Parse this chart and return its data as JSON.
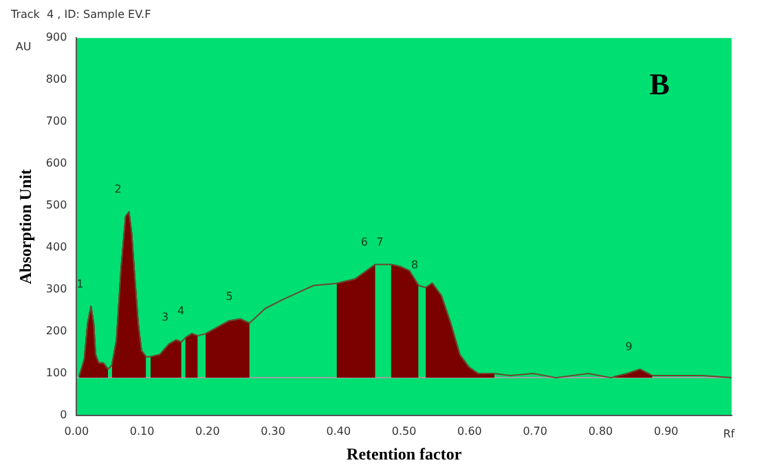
{
  "chart_data": {
    "type": "line",
    "title": "Track  4 , ID: Sample EV.F",
    "xlabel": "Retention factor",
    "ylabel": "Absorption Unit",
    "xlim": [
      0,
      1
    ],
    "ylim": [
      0,
      900
    ],
    "xticks": [
      {
        "value": 0,
        "label": "0.00"
      },
      {
        "value": 0.1,
        "label": "0.10"
      },
      {
        "value": 0.2,
        "label": "0.20"
      },
      {
        "value": 0.3,
        "label": "0.30"
      },
      {
        "value": 0.4,
        "label": "0.40"
      },
      {
        "value": 0.5,
        "label": "0.50"
      },
      {
        "value": 0.6,
        "label": "0.60"
      },
      {
        "value": 0.7,
        "label": "0.70"
      },
      {
        "value": 0.8,
        "label": "0.80"
      },
      {
        "value": 0.9,
        "label": "0.90"
      }
    ],
    "yticks": [
      0,
      100,
      200,
      300,
      400,
      500,
      600,
      700,
      800,
      900
    ],
    "grid": false,
    "legend": false,
    "marker": "none",
    "line_style": "solid",
    "ref_lines": [
      {
        "axis": "y",
        "value": 90,
        "color": "#a0a0a0"
      }
    ],
    "series": [
      {
        "type": "line",
        "color": "#6b4a2e",
        "x": [
          0.004,
          0.012,
          0.017,
          0.022,
          0.026,
          0.029,
          0.034,
          0.041,
          0.048,
          0.054,
          0.061,
          0.068,
          0.075,
          0.08,
          0.084,
          0.089,
          0.094,
          0.099,
          0.106,
          0.113,
          0.127,
          0.141,
          0.152,
          0.16,
          0.166,
          0.176,
          0.185,
          0.197,
          0.215,
          0.232,
          0.25,
          0.264,
          0.288,
          0.313,
          0.334,
          0.362,
          0.397,
          0.425,
          0.456,
          0.47,
          0.48,
          0.494,
          0.508,
          0.522,
          0.533,
          0.543,
          0.557,
          0.571,
          0.585,
          0.599,
          0.613,
          0.638,
          0.662,
          0.697,
          0.732,
          0.781,
          0.816,
          0.841,
          0.86,
          0.879,
          0.907,
          0.956,
          1.0
        ],
        "values": [
          93,
          135,
          220,
          260,
          220,
          145,
          125,
          125,
          110,
          120,
          180,
          350,
          475,
          485,
          435,
          325,
          220,
          155,
          140,
          140,
          145,
          170,
          180,
          175,
          185,
          195,
          190,
          195,
          210,
          225,
          230,
          220,
          255,
          275,
          290,
          310,
          315,
          325,
          360,
          360,
          360,
          355,
          345,
          310,
          305,
          315,
          285,
          220,
          145,
          115,
          100,
          100,
          95,
          100,
          90,
          100,
          90,
          100,
          110,
          95,
          95,
          95,
          90
        ]
      },
      {
        "type": "area",
        "color": "#7b0000",
        "x": [
          0.004,
          0.012,
          0.017,
          0.022,
          0.026,
          0.029,
          0.034,
          0.041,
          0.048
        ],
        "values": [
          93,
          135,
          220,
          260,
          220,
          145,
          125,
          125,
          110
        ]
      },
      {
        "type": "area",
        "color": "#7b0000",
        "x": [
          0.054,
          0.061,
          0.068,
          0.075,
          0.08,
          0.084,
          0.089,
          0.094,
          0.099,
          0.106
        ],
        "values": [
          120,
          180,
          350,
          475,
          485,
          435,
          325,
          220,
          155,
          140
        ]
      },
      {
        "type": "area",
        "color": "#7b0000",
        "x": [
          0.113,
          0.127,
          0.141,
          0.152,
          0.16
        ],
        "values": [
          140,
          145,
          170,
          180,
          175
        ]
      },
      {
        "type": "area",
        "color": "#7b0000",
        "x": [
          0.166,
          0.176,
          0.185
        ],
        "values": [
          185,
          195,
          190
        ]
      },
      {
        "type": "area",
        "color": "#7b0000",
        "x": [
          0.197,
          0.215,
          0.232,
          0.25,
          0.264
        ],
        "values": [
          195,
          210,
          225,
          230,
          220
        ]
      },
      {
        "type": "area",
        "color": "#7b0000",
        "x": [
          0.397,
          0.425,
          0.456
        ],
        "values": [
          315,
          325,
          360
        ]
      },
      {
        "type": "area",
        "color": "#7b0000",
        "x": [
          0.48,
          0.494,
          0.508,
          0.522
        ],
        "values": [
          360,
          355,
          345,
          310
        ]
      },
      {
        "type": "area",
        "color": "#7b0000",
        "x": [
          0.533,
          0.543,
          0.557,
          0.571,
          0.585,
          0.599,
          0.613,
          0.638
        ],
        "values": [
          305,
          315,
          285,
          220,
          145,
          115,
          100,
          100
        ]
      },
      {
        "type": "area",
        "color": "#7b0000",
        "x": [
          0.82,
          0.841,
          0.86,
          0.879
        ],
        "values": [
          92,
          100,
          110,
          95
        ]
      }
    ],
    "annotations": [
      "AU",
      "Rf",
      "B",
      {
        "text": "1",
        "x": 0.022,
        "y": 260
      },
      {
        "text": "2",
        "x": 0.08,
        "y": 485
      },
      {
        "text": "3",
        "x": 0.152,
        "y": 180
      },
      {
        "text": "4",
        "x": 0.176,
        "y": 195
      },
      {
        "text": "5",
        "x": 0.25,
        "y": 230
      },
      {
        "text": "6",
        "x": 0.456,
        "y": 360
      },
      {
        "text": "7",
        "x": 0.48,
        "y": 360
      },
      {
        "text": "8",
        "x": 0.533,
        "y": 305
      },
      {
        "text": "9",
        "x": 0.86,
        "y": 110
      }
    ]
  }
}
